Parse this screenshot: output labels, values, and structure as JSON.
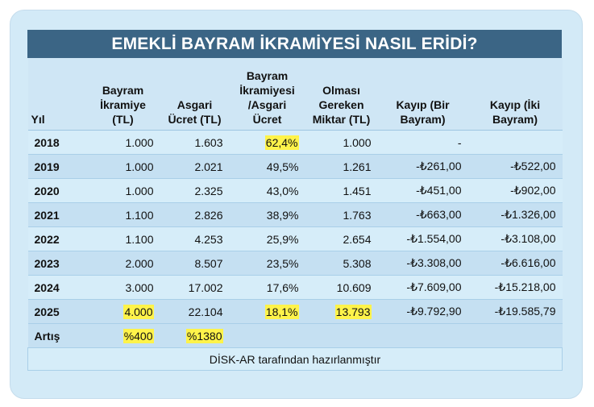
{
  "title": "EMEKLİ BAYRAM İKRAMİYESİ NASIL ERİDİ?",
  "headers": [
    "Yıl",
    "Bayram İkramiye (TL)",
    "Asgari Ücret (TL)",
    "Bayram İkramiyesi /Asgari Ücret",
    "Olması Gereken Miktar (TL)",
    "Kayıp (Bir Bayram)",
    "Kayıp (İki Bayram)"
  ],
  "rows": [
    [
      "2018",
      "1.000",
      "1.603",
      "62,4%",
      "1.000",
      "-",
      ""
    ],
    [
      "2019",
      "1.000",
      "2.021",
      "49,5%",
      "1.261",
      "-₺261,00",
      "-₺522,00"
    ],
    [
      "2020",
      "1.000",
      "2.325",
      "43,0%",
      "1.451",
      "-₺451,00",
      "-₺902,00"
    ],
    [
      "2021",
      "1.100",
      "2.826",
      "38,9%",
      "1.763",
      "-₺663,00",
      "-₺1.326,00"
    ],
    [
      "2022",
      "1.100",
      "4.253",
      "25,9%",
      "2.654",
      "-₺1.554,00",
      "-₺3.108,00"
    ],
    [
      "2023",
      "2.000",
      "8.507",
      "23,5%",
      "5.308",
      "-₺3.308,00",
      "-₺6.616,00"
    ],
    [
      "2024",
      "3.000",
      "17.002",
      "17,6%",
      "10.609",
      "-₺7.609,00",
      "-₺15.218,00"
    ],
    [
      "2025",
      "4.000",
      "22.104",
      "18,1%",
      "13.793",
      "-₺9.792,90",
      "-₺19.585,79"
    ]
  ],
  "increase": {
    "label": "Artış",
    "bonus": "%400",
    "wage": "%1380"
  },
  "footer": "DİSK-AR tarafından hazırlanmıştır",
  "colors": {
    "title_bg": "#3b6585",
    "highlight": "#fff34a",
    "card_bg": "#d3eaf7"
  }
}
